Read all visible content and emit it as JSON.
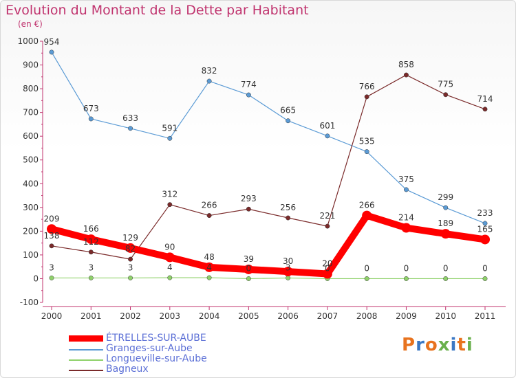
{
  "title": "Evolution du Montant de la Dette par Habitant",
  "unit_label": "(en €)",
  "logo": {
    "text": "Proxiti",
    "letter_colors": [
      "#e8731e",
      "#3b78c4",
      "#e8731e",
      "#6ab04c",
      "#3b78c4",
      "#e8731e",
      "#6ab04c"
    ]
  },
  "chart_data": {
    "type": "line",
    "title": "Evolution du Montant de la Dette par Habitant",
    "ylabel": "(en €)",
    "xlabel": "",
    "x": [
      "2000",
      "2001",
      "2002",
      "2003",
      "2004",
      "2005",
      "2006",
      "2007",
      "2008",
      "2009",
      "2010",
      "2011"
    ],
    "ylim": [
      -100,
      1000
    ],
    "yticks": [
      -100,
      0,
      100,
      200,
      300,
      400,
      500,
      600,
      700,
      800,
      900,
      1000
    ],
    "grid": false,
    "legend_position": "bottom-left",
    "series": [
      {
        "name": "ÉTRELLES-SUR-AUBE",
        "color": "#ff0000",
        "values": [
          209,
          166,
          129,
          90,
          48,
          39,
          30,
          20,
          266,
          214,
          189,
          165
        ],
        "emphasis": true
      },
      {
        "name": "Granges-sur-Aube",
        "color": "#5b9bd5",
        "values": [
          954,
          673,
          633,
          591,
          832,
          774,
          665,
          601,
          535,
          375,
          299,
          233
        ],
        "emphasis": false
      },
      {
        "name": "Longueville-sur-Aube",
        "color": "#8fd16a",
        "values": [
          3,
          3,
          3,
          4,
          4,
          0,
          3,
          0,
          0,
          0,
          0,
          0
        ],
        "emphasis": false
      },
      {
        "name": "Bagneux",
        "color": "#7a2a2a",
        "values": [
          138,
          112,
          82,
          312,
          266,
          293,
          256,
          221,
          766,
          858,
          775,
          714
        ],
        "emphasis": false
      }
    ]
  }
}
